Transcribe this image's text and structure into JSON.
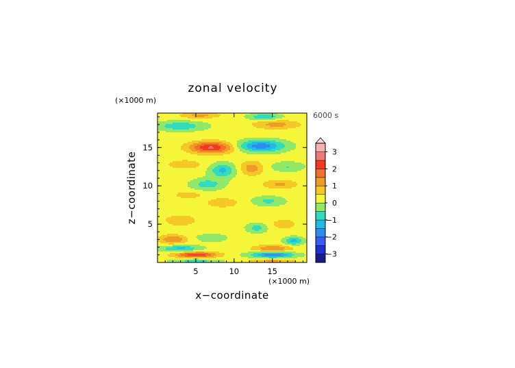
{
  "chart_data": {
    "type": "heatmap",
    "title": "zonal velocity",
    "xlabel": "x−coordinate",
    "ylabel": "z−coordinate",
    "x_unit": "(×1000 m)",
    "y_unit": "(×1000 m)",
    "time_label": "6000 s",
    "xlim": [
      0,
      19.5
    ],
    "ylim": [
      0,
      19.5
    ],
    "x_ticks": [
      5,
      10,
      15
    ],
    "y_ticks": [
      5,
      10,
      15
    ],
    "x_tick_labels": [
      "5",
      "10",
      "15"
    ],
    "y_tick_labels": [
      "5",
      "10",
      "15"
    ],
    "colorbar": {
      "levels": [
        -3.5,
        -3,
        -2.5,
        -2,
        -1.5,
        -1,
        -0.5,
        0,
        0.5,
        1,
        1.5,
        2,
        2.5,
        3,
        3.5
      ],
      "colors": [
        "#1a1a8c",
        "#1f2fd0",
        "#3a5cf0",
        "#2d8cf0",
        "#22b8e8",
        "#30dcc0",
        "#8fe86a",
        "#f5f53a",
        "#f5c828",
        "#f09a28",
        "#f07028",
        "#f03c1e",
        "#f07878",
        "#f5b0b0"
      ],
      "tick_values": [
        3,
        2,
        1,
        0,
        -1,
        -2,
        -3
      ],
      "tick_labels": [
        "3",
        "2",
        "1",
        "0",
        "−1",
        "−2",
        "−3"
      ],
      "extend": "max"
    },
    "features": [
      {
        "x": 7,
        "z": 15,
        "sx": 2.8,
        "sz": 0.75,
        "amp": 2.4
      },
      {
        "x": 13.5,
        "z": 15.2,
        "sx": 3.0,
        "sz": 0.75,
        "amp": -2.0
      },
      {
        "x": 3,
        "z": 17.8,
        "sx": 3.0,
        "sz": 0.6,
        "amp": -1.1
      },
      {
        "x": 15.5,
        "z": 18,
        "sx": 3.0,
        "sz": 0.6,
        "amp": 1.0
      },
      {
        "x": 8.5,
        "z": 12,
        "sx": 1.6,
        "sz": 0.9,
        "amp": -1.3
      },
      {
        "x": 12.3,
        "z": 12.3,
        "sx": 1.5,
        "sz": 0.9,
        "amp": 1.1
      },
      {
        "x": 3.5,
        "z": 12.8,
        "sx": 2.3,
        "sz": 0.6,
        "amp": 0.7
      },
      {
        "x": 17,
        "z": 12.5,
        "sx": 2.0,
        "sz": 0.6,
        "amp": -0.7
      },
      {
        "x": 6.5,
        "z": 10.2,
        "sx": 2.0,
        "sz": 0.7,
        "amp": -1.0
      },
      {
        "x": 16,
        "z": 10.2,
        "sx": 2.2,
        "sz": 0.6,
        "amp": 0.9
      },
      {
        "x": 8.5,
        "z": 7.8,
        "sx": 2.0,
        "sz": 0.6,
        "amp": 0.8
      },
      {
        "x": 14.5,
        "z": 8.0,
        "sx": 2.0,
        "sz": 0.6,
        "amp": -0.8
      },
      {
        "x": 3,
        "z": 5.5,
        "sx": 2.0,
        "sz": 0.7,
        "amp": 0.8
      },
      {
        "x": 16.5,
        "z": 5.0,
        "sx": 1.8,
        "sz": 0.7,
        "amp": 0.6
      },
      {
        "x": 13,
        "z": 4.5,
        "sx": 1.3,
        "sz": 0.6,
        "amp": -0.9
      },
      {
        "x": 2,
        "z": 3.0,
        "sx": 1.8,
        "sz": 0.6,
        "amp": 1.3
      },
      {
        "x": 7,
        "z": 3.2,
        "sx": 2.0,
        "sz": 0.5,
        "amp": -0.6
      },
      {
        "x": 17.8,
        "z": 2.8,
        "sx": 1.2,
        "sz": 0.5,
        "amp": -1.4
      },
      {
        "x": 3,
        "z": 1.8,
        "sx": 2.5,
        "sz": 0.45,
        "amp": -1.3
      },
      {
        "x": 15,
        "z": 1.8,
        "sx": 2.5,
        "sz": 0.45,
        "amp": 1.3
      },
      {
        "x": 5,
        "z": 1.0,
        "sx": 2.8,
        "sz": 0.4,
        "amp": 2.2
      },
      {
        "x": 15,
        "z": 1.0,
        "sx": 2.8,
        "sz": 0.4,
        "amp": -2.0
      },
      {
        "x": 5,
        "z": 0.2,
        "sx": 3.0,
        "sz": 0.3,
        "amp": -1.0
      },
      {
        "x": 15,
        "z": 0.2,
        "sx": 3.0,
        "sz": 0.3,
        "amp": 1.0
      },
      {
        "x": 4,
        "z": 8.8,
        "sx": 2.0,
        "sz": 0.5,
        "amp": 0.6
      },
      {
        "x": 14,
        "z": 19.0,
        "sx": 2.0,
        "sz": 0.4,
        "amp": -1.2
      },
      {
        "x": 5.5,
        "z": 19.2,
        "sx": 2.5,
        "sz": 0.4,
        "amp": 1.0
      }
    ]
  }
}
